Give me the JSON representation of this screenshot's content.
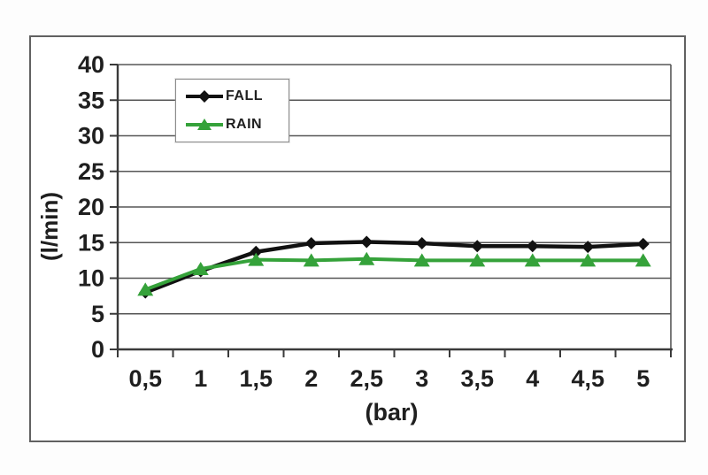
{
  "page": {
    "background": "#fdfdfd",
    "plot_background": "#ffffff"
  },
  "chart_data": {
    "type": "line",
    "title": "",
    "xlabel": "(bar)",
    "ylabel": "(l/min)",
    "categories": [
      0.5,
      1,
      1.5,
      2,
      2.5,
      3,
      3.5,
      4,
      4.5,
      5
    ],
    "categories_display": [
      "0,5",
      "1",
      "1,5",
      "2",
      "2,5",
      "3",
      "3,5",
      "4",
      "4,5",
      "5"
    ],
    "series": [
      {
        "name": "FALL",
        "color": "#111111",
        "marker": "diamond",
        "values": [
          8.0,
          11.0,
          13.7,
          14.9,
          15.1,
          14.9,
          14.5,
          14.5,
          14.4,
          14.8
        ]
      },
      {
        "name": "RAIN",
        "color": "#35a23a",
        "marker": "triangle",
        "values": [
          8.4,
          11.3,
          12.6,
          12.5,
          12.7,
          12.5,
          12.5,
          12.5,
          12.5,
          12.5
        ]
      }
    ],
    "ylim": [
      0,
      40
    ],
    "yticks": [
      0,
      5,
      10,
      15,
      20,
      25,
      30,
      35,
      40
    ],
    "grid": "horizontal",
    "legend_position": "upper-left-inside",
    "colors": {
      "axis": "#3a3a3a",
      "grid": "#565656",
      "tick_label": "#1f1f1f",
      "axis_title": "#1f1f1f",
      "frame_border": "#616161",
      "plot_right_border": "#565656"
    }
  }
}
